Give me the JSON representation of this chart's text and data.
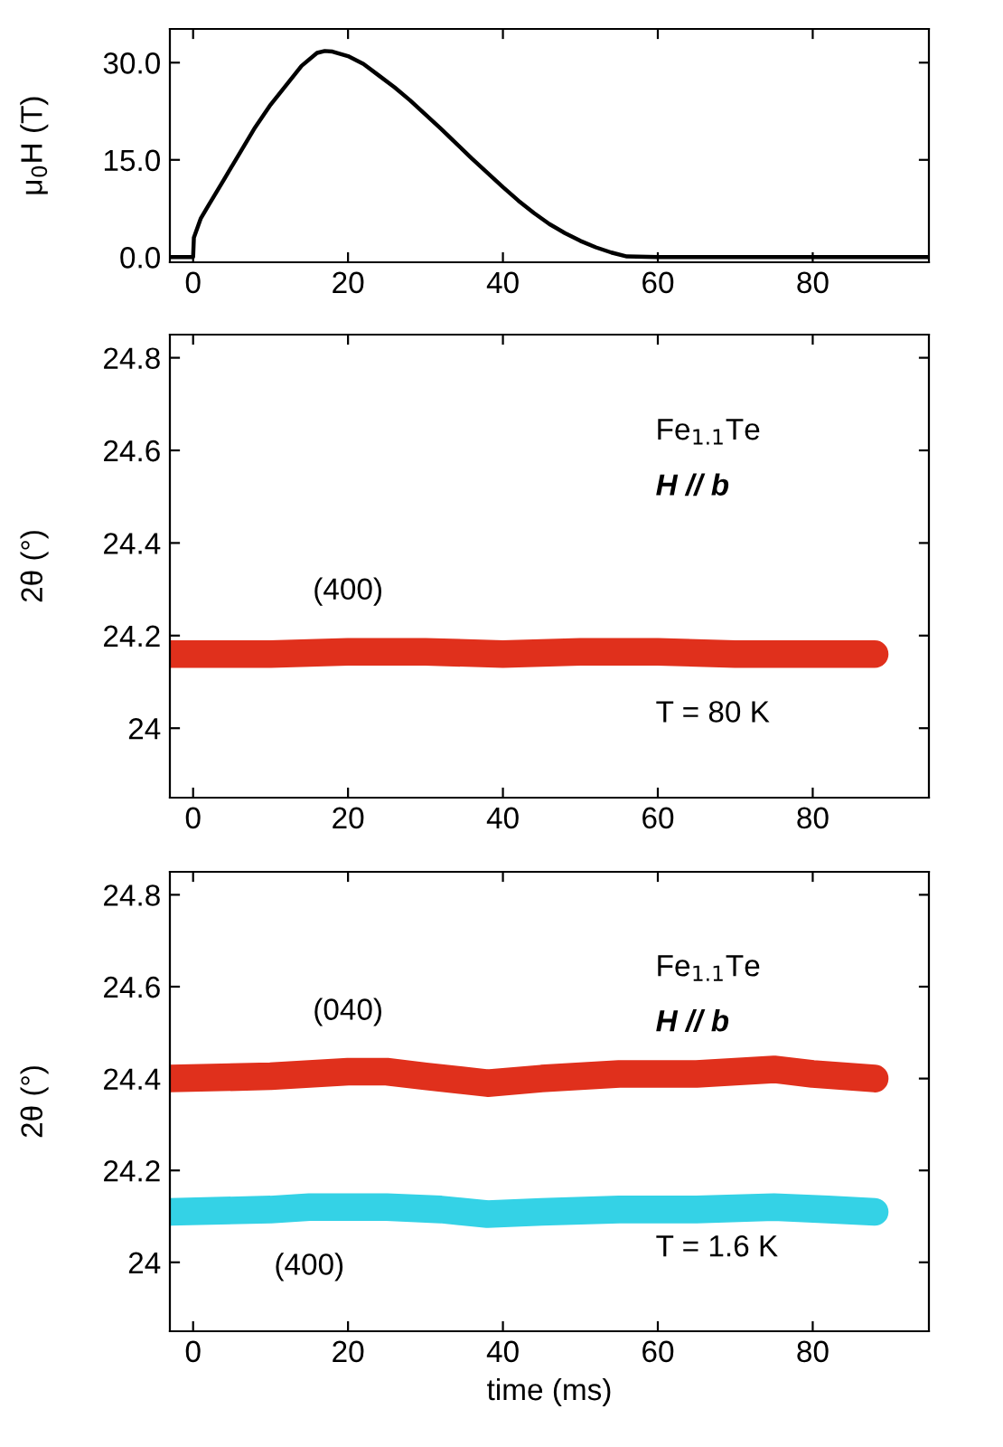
{
  "chart_data": [
    {
      "type": "line",
      "ylabel": "μ$_{0}$H (T)",
      "series": [
        {
          "color": "#000000",
          "x": [
            -3,
            0,
            0.1,
            1,
            2,
            4,
            6,
            8,
            10,
            12,
            14,
            16,
            17,
            18,
            20,
            22,
            24,
            26,
            28,
            30,
            32,
            34,
            36,
            38,
            40,
            42,
            44,
            46,
            48,
            50,
            52,
            54,
            56,
            60,
            70,
            80,
            95
          ],
          "values": [
            0,
            0,
            3,
            6,
            8,
            12,
            16,
            20,
            23.5,
            26.5,
            29.5,
            31.5,
            31.8,
            31.7,
            31,
            29.8,
            28,
            26.2,
            24.2,
            22,
            19.8,
            17.5,
            15.2,
            13,
            10.8,
            8.7,
            6.8,
            5.1,
            3.7,
            2.5,
            1.5,
            0.7,
            0.1,
            0,
            0,
            0,
            0
          ]
        }
      ],
      "xlim": [
        -3,
        95
      ],
      "xticks": [
        0,
        20,
        40,
        60,
        80
      ],
      "ylim": [
        -0.8,
        35.2
      ],
      "yticks": [
        {
          "value": 0,
          "label": "0.0"
        },
        {
          "value": 15,
          "label": "15.0"
        },
        {
          "value": 30,
          "label": "30.0"
        }
      ],
      "grid": false,
      "line_style": "solid",
      "marker": "none"
    },
    {
      "type": "line",
      "ylabel": "2θ (°)",
      "series": [
        {
          "name": "(400)",
          "color": "#e0301c",
          "x": [
            -3,
            10,
            20,
            30,
            40,
            50,
            60,
            70,
            80,
            88
          ],
          "values": [
            24.16,
            24.16,
            24.165,
            24.165,
            24.16,
            24.165,
            24.165,
            24.16,
            24.16,
            24.16
          ]
        }
      ],
      "annotations": [
        "Fe$_{1.1}$Te",
        "H // b",
        "T = 80 K"
      ],
      "xlim": [
        -3,
        95
      ],
      "xticks": [
        0,
        20,
        40,
        60,
        80
      ],
      "ylim": [
        23.85,
        24.85
      ],
      "yticks": [
        24,
        24.2,
        24.4,
        24.6,
        24.8
      ],
      "grid": false,
      "line_style": "solid",
      "marker": "none"
    },
    {
      "type": "line",
      "xlabel": "time (ms)",
      "ylabel": "2θ (°)",
      "series": [
        {
          "name": "(040)",
          "color": "#e0301c",
          "x": [
            -3,
            10,
            20,
            25,
            30,
            38,
            45,
            55,
            65,
            75,
            80,
            88
          ],
          "values": [
            24.4,
            24.405,
            24.415,
            24.415,
            24.405,
            24.39,
            24.4,
            24.41,
            24.41,
            24.42,
            24.41,
            24.4
          ]
        },
        {
          "name": "(400)",
          "color": "#34d2e6",
          "x": [
            -3,
            10,
            15,
            25,
            32,
            38,
            45,
            55,
            65,
            75,
            82,
            88
          ],
          "values": [
            24.11,
            24.115,
            24.12,
            24.12,
            24.115,
            24.105,
            24.11,
            24.115,
            24.115,
            24.12,
            24.115,
            24.11
          ]
        }
      ],
      "annotations": [
        "Fe$_{1.1}$Te",
        "H // b",
        "T = 1.6 K"
      ],
      "xlim": [
        -3,
        95
      ],
      "xticks": [
        0,
        20,
        40,
        60,
        80
      ],
      "ylim": [
        23.85,
        24.85
      ],
      "yticks": [
        24,
        24.2,
        24.4,
        24.6,
        24.8
      ],
      "grid": false,
      "line_style": "solid",
      "marker": "none"
    }
  ]
}
